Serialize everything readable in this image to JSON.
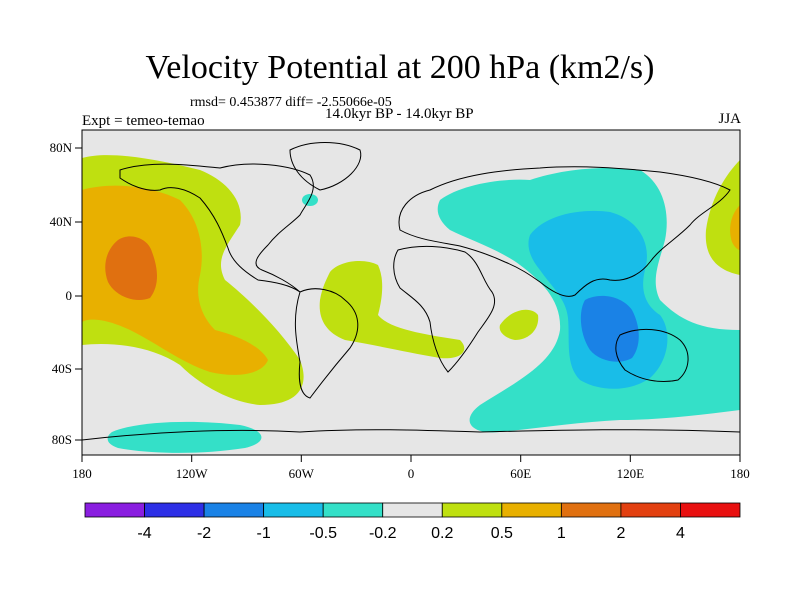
{
  "title": "Velocity Potential at 200 hPa (km2/s)",
  "stats": "rmsd= 0.453877 diff= -2.55066e-05",
  "period": "14.0kyr BP - 14.0kyr BP",
  "experiment": "Expt = temeo-temao",
  "season": "JJA",
  "axes": {
    "x_ticks": [
      "180",
      "120W",
      "60W",
      "0",
      "60E",
      "120E",
      "180"
    ],
    "y_ticks": [
      "80N",
      "40N",
      "0",
      "40S",
      "80S"
    ]
  },
  "colorbar": {
    "labels": [
      "-4",
      "-2",
      "-1",
      "-0.5",
      "-0.2",
      "0.2",
      "0.5",
      "1",
      "2",
      "4"
    ],
    "colors": [
      "#8a1ee0",
      "#2d2fe6",
      "#1a82e6",
      "#19bde8",
      "#34e0c8",
      "#e6e6e6",
      "#bfe010",
      "#e8b000",
      "#e07010",
      "#e24010",
      "#e81010"
    ]
  }
}
